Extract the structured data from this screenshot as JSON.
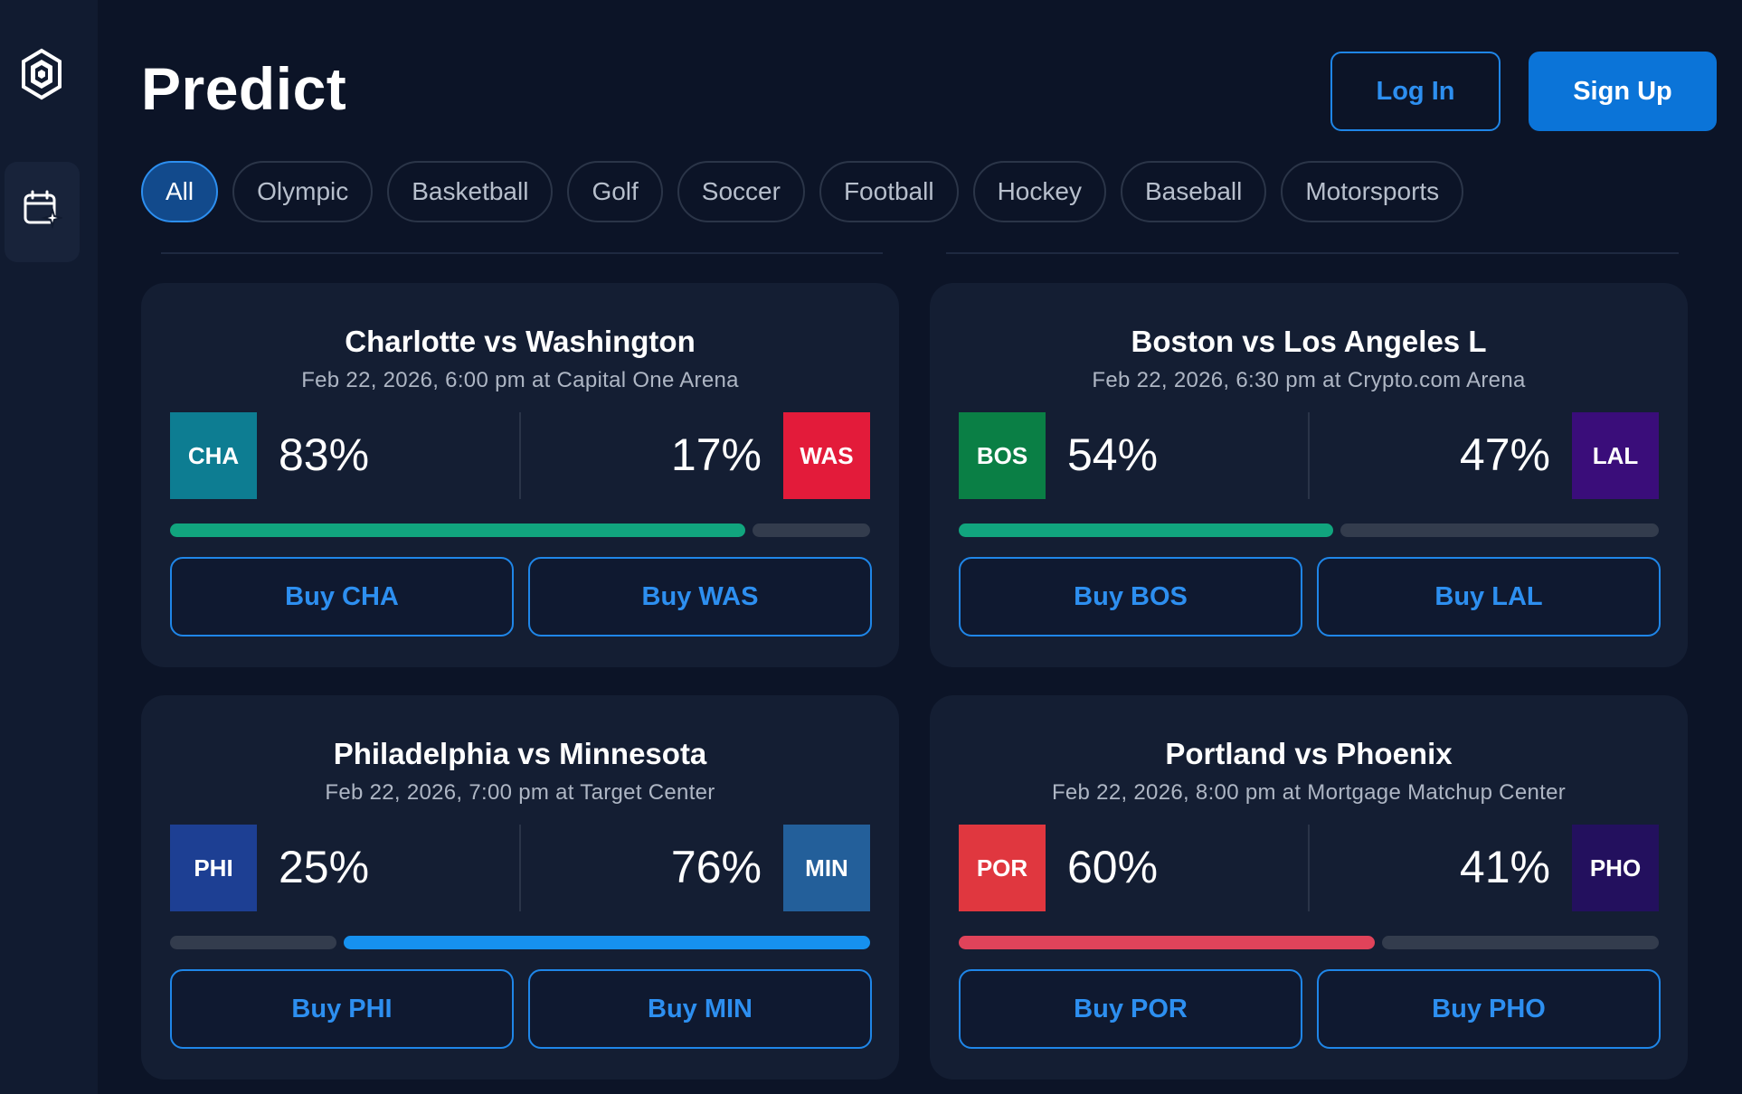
{
  "app": {
    "title": "Predict",
    "login_label": "Log In",
    "signup_label": "Sign Up"
  },
  "sidebar": {
    "items": [
      {
        "icon": "calendar-sparkle-icon",
        "active": true
      }
    ]
  },
  "tabs": [
    {
      "label": "All",
      "active": true
    },
    {
      "label": "Olympic",
      "active": false
    },
    {
      "label": "Basketball",
      "active": false
    },
    {
      "label": "Golf",
      "active": false
    },
    {
      "label": "Soccer",
      "active": false
    },
    {
      "label": "Football",
      "active": false
    },
    {
      "label": "Hockey",
      "active": false
    },
    {
      "label": "Baseball",
      "active": false
    },
    {
      "label": "Motorsports",
      "active": false
    }
  ],
  "games": [
    {
      "title": "Charlotte vs Washington",
      "subtitle": "Feb 22, 2026, 6:00 pm at Capital One Arena",
      "home": {
        "abbr": "CHA",
        "pct": "83%",
        "color": "#0d7d92",
        "buy": "Buy CHA"
      },
      "away": {
        "abbr": "WAS",
        "pct": "17%",
        "color": "#e31b3a",
        "buy": "Buy WAS"
      },
      "leader": "home",
      "leader_share": 0.83,
      "bar_color": "#11a57e"
    },
    {
      "title": "Boston vs Los Angeles L",
      "subtitle": "Feb 22, 2026, 6:30 pm at Crypto.com Arena",
      "home": {
        "abbr": "BOS",
        "pct": "54%",
        "color": "#0a7f45",
        "buy": "Buy BOS"
      },
      "away": {
        "abbr": "LAL",
        "pct": "47%",
        "color": "#3a0d7a",
        "buy": "Buy LAL"
      },
      "leader": "home",
      "leader_share": 0.54,
      "bar_color": "#11a57e"
    },
    {
      "title": "Philadelphia vs Minnesota",
      "subtitle": "Feb 22, 2026, 7:00 pm at Target Center",
      "home": {
        "abbr": "PHI",
        "pct": "25%",
        "color": "#1d3f93",
        "buy": "Buy PHI"
      },
      "away": {
        "abbr": "MIN",
        "pct": "76%",
        "color": "#235f9a",
        "buy": "Buy MIN"
      },
      "leader": "away",
      "leader_share": 0.76,
      "bar_color": "#1691ef"
    },
    {
      "title": "Portland vs Phoenix",
      "subtitle": "Feb 22, 2026, 8:00 pm at Mortgage Matchup Center",
      "home": {
        "abbr": "POR",
        "pct": "60%",
        "color": "#e0373f",
        "buy": "Buy POR"
      },
      "away": {
        "abbr": "PHO",
        "pct": "41%",
        "color": "#23105e",
        "buy": "Buy PHO"
      },
      "leader": "home",
      "leader_share": 0.6,
      "bar_color": "#e0435a"
    }
  ],
  "colors": {
    "background": "#0c1427",
    "card": "#141e33",
    "accent": "#1f86e8",
    "bar_track": "#333c4d"
  }
}
